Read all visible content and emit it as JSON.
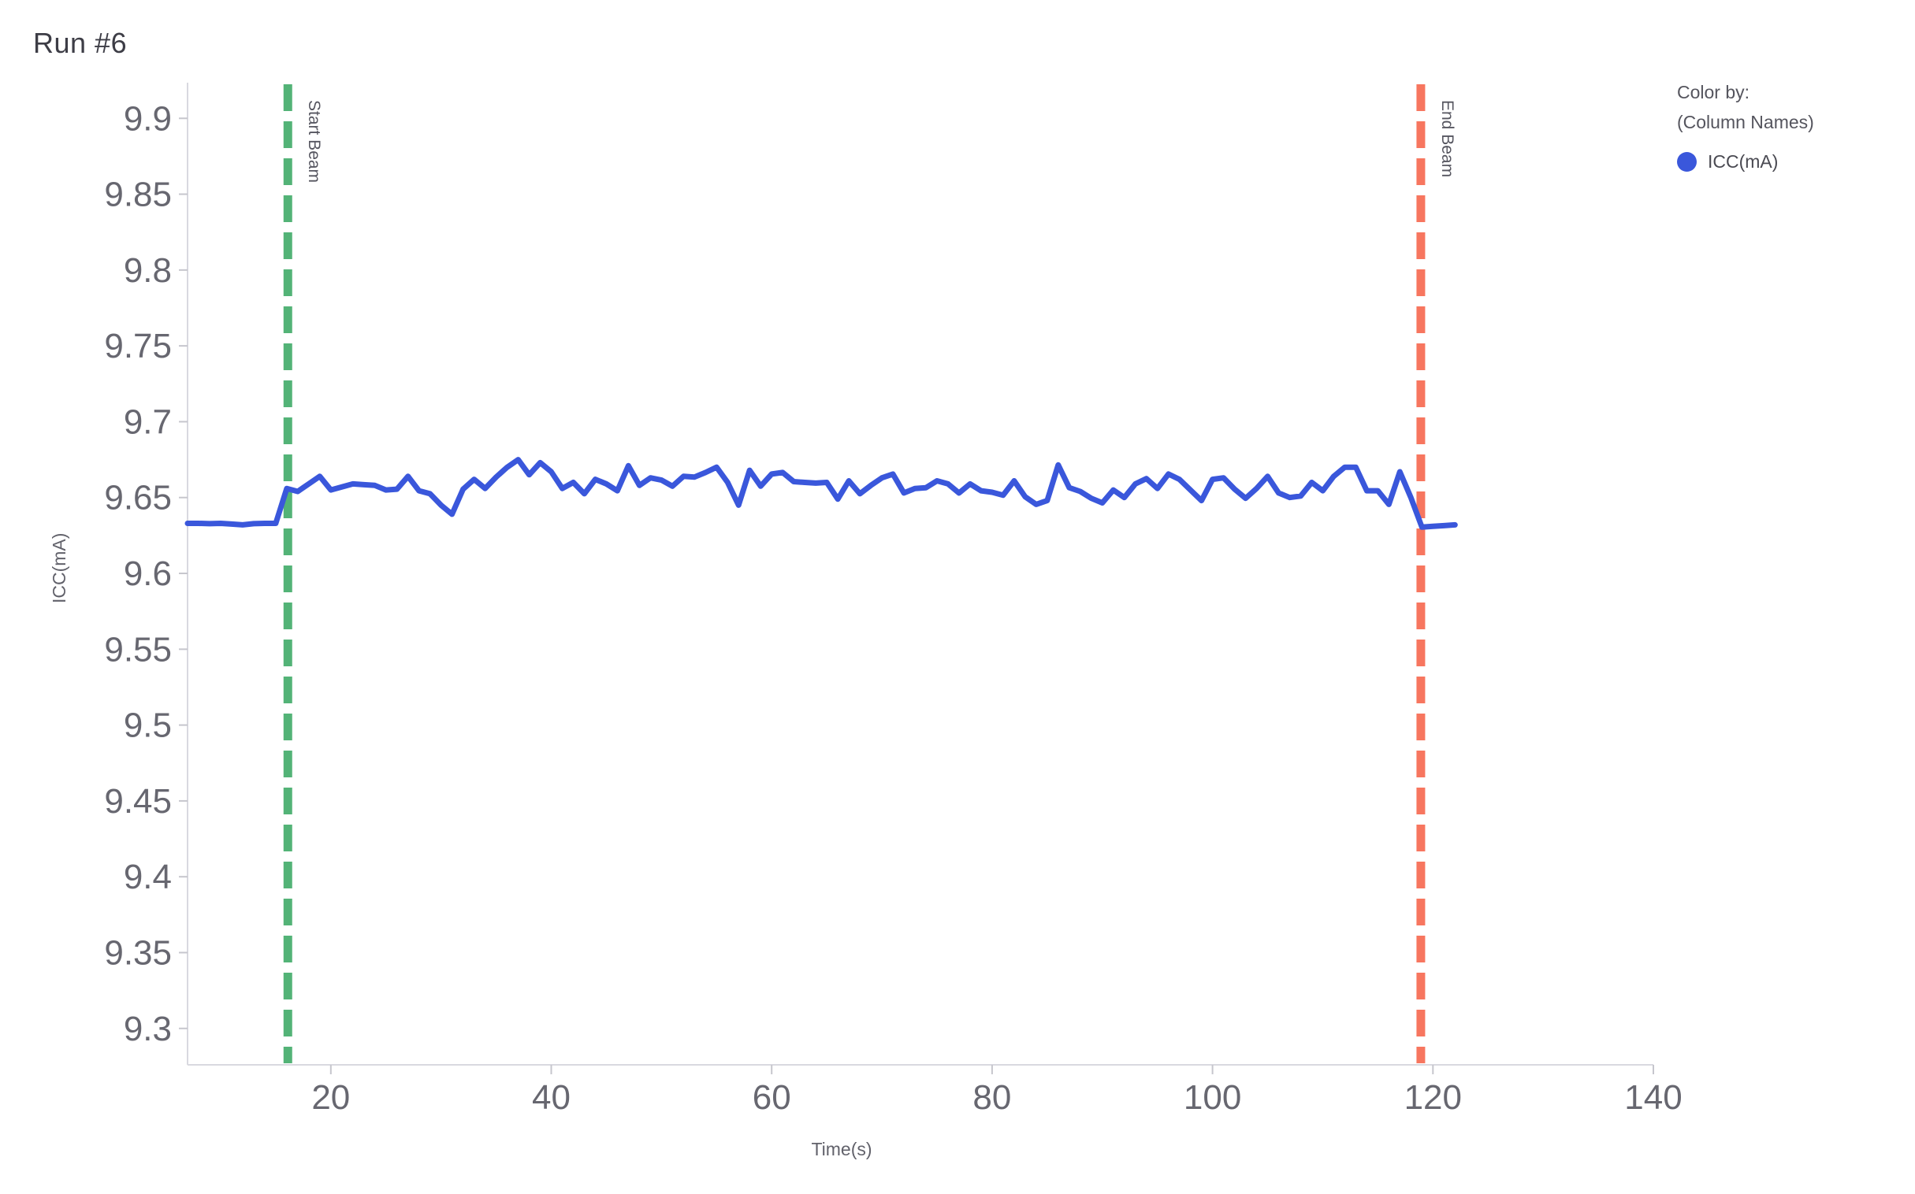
{
  "page_title": "Run #6",
  "legend": {
    "title_line1": "Color by:",
    "title_line2": "(Column Names)",
    "items": [
      {
        "label": "ICC(mA)",
        "color": "#3A57DB"
      }
    ]
  },
  "colors": {
    "series_blue": "#3A57DB",
    "start_beam_green": "#53B377",
    "end_beam_red": "#F7765F",
    "axis_line": "#d9d9e0",
    "tick_mark": "#c6c6cd",
    "tick_text": "#676770"
  },
  "chart_data": {
    "type": "line",
    "title": "Run #6",
    "xlabel": "Time(s)",
    "ylabel": "ICC(mA)",
    "xlim": [
      7,
      140
    ],
    "ylim": [
      9.276,
      9.9235
    ],
    "x_ticks": [
      20,
      40,
      60,
      80,
      100,
      120,
      140
    ],
    "y_ticks": [
      9.3,
      9.35,
      9.4,
      9.45,
      9.5,
      9.55,
      9.6,
      9.65,
      9.7,
      9.75,
      9.8,
      9.85,
      9.9
    ],
    "grid": false,
    "legend_position": "top-right",
    "annotations": [
      {
        "type": "vline",
        "x": 16.1,
        "label": "Start Beam",
        "color": "#53B377"
      },
      {
        "type": "vline",
        "x": 118.9,
        "label": "End Beam",
        "color": "#F7765F"
      }
    ],
    "series": [
      {
        "name": "ICC(mA)",
        "color": "#3A57DB",
        "x": [
          7,
          8,
          9,
          10,
          11,
          12,
          13,
          14,
          15,
          16,
          17,
          18,
          19,
          20,
          21,
          22,
          23,
          24,
          25,
          26,
          27,
          28,
          29,
          30,
          31,
          32,
          33,
          34,
          35,
          36,
          37,
          38,
          39,
          40,
          41,
          42,
          43,
          44,
          45,
          46,
          47,
          48,
          49,
          50,
          51,
          52,
          53,
          54,
          55,
          56,
          57,
          58,
          59,
          60,
          61,
          62,
          63,
          64,
          65,
          66,
          67,
          68,
          69,
          70,
          71,
          72,
          73,
          74,
          75,
          76,
          77,
          78,
          79,
          80,
          81,
          82,
          83,
          84,
          85,
          86,
          87,
          88,
          89,
          90,
          91,
          92,
          93,
          94,
          95,
          96,
          97,
          98,
          99,
          100,
          101,
          102,
          103,
          104,
          105,
          106,
          107,
          108,
          109,
          110,
          111,
          112,
          113,
          114,
          115,
          116,
          117,
          118,
          119,
          120,
          121,
          122
        ],
        "y": [
          9.633,
          9.633,
          9.6328,
          9.633,
          9.6325,
          9.632,
          9.6328,
          9.633,
          9.633,
          9.656,
          9.654,
          9.659,
          9.664,
          9.655,
          9.657,
          9.659,
          9.6585,
          9.658,
          9.655,
          9.6555,
          9.664,
          9.6545,
          9.6525,
          9.645,
          9.639,
          9.6555,
          9.662,
          9.656,
          9.6635,
          9.67,
          9.675,
          9.665,
          9.673,
          9.667,
          9.656,
          9.66,
          9.6525,
          9.662,
          9.659,
          9.6545,
          9.671,
          9.658,
          9.663,
          9.6615,
          9.6575,
          9.664,
          9.6635,
          9.6665,
          9.67,
          9.66,
          9.645,
          9.668,
          9.6575,
          9.6655,
          9.6665,
          9.6605,
          9.66,
          9.6595,
          9.66,
          9.649,
          9.661,
          9.6525,
          9.658,
          9.663,
          9.6655,
          9.653,
          9.656,
          9.6565,
          9.661,
          9.659,
          9.653,
          9.659,
          9.6545,
          9.6535,
          9.6515,
          9.661,
          9.6505,
          9.6455,
          9.648,
          9.6715,
          9.6565,
          9.654,
          9.6495,
          9.6465,
          9.655,
          9.65,
          9.659,
          9.6625,
          9.656,
          9.6655,
          9.662,
          9.655,
          9.648,
          9.662,
          9.663,
          9.6555,
          9.6495,
          9.656,
          9.664,
          9.653,
          9.65,
          9.651,
          9.66,
          9.6545,
          9.664,
          9.67,
          9.67,
          9.6545,
          9.6545,
          9.6455,
          9.667,
          9.65,
          9.6305,
          9.631,
          9.6315,
          9.632
        ]
      }
    ]
  }
}
